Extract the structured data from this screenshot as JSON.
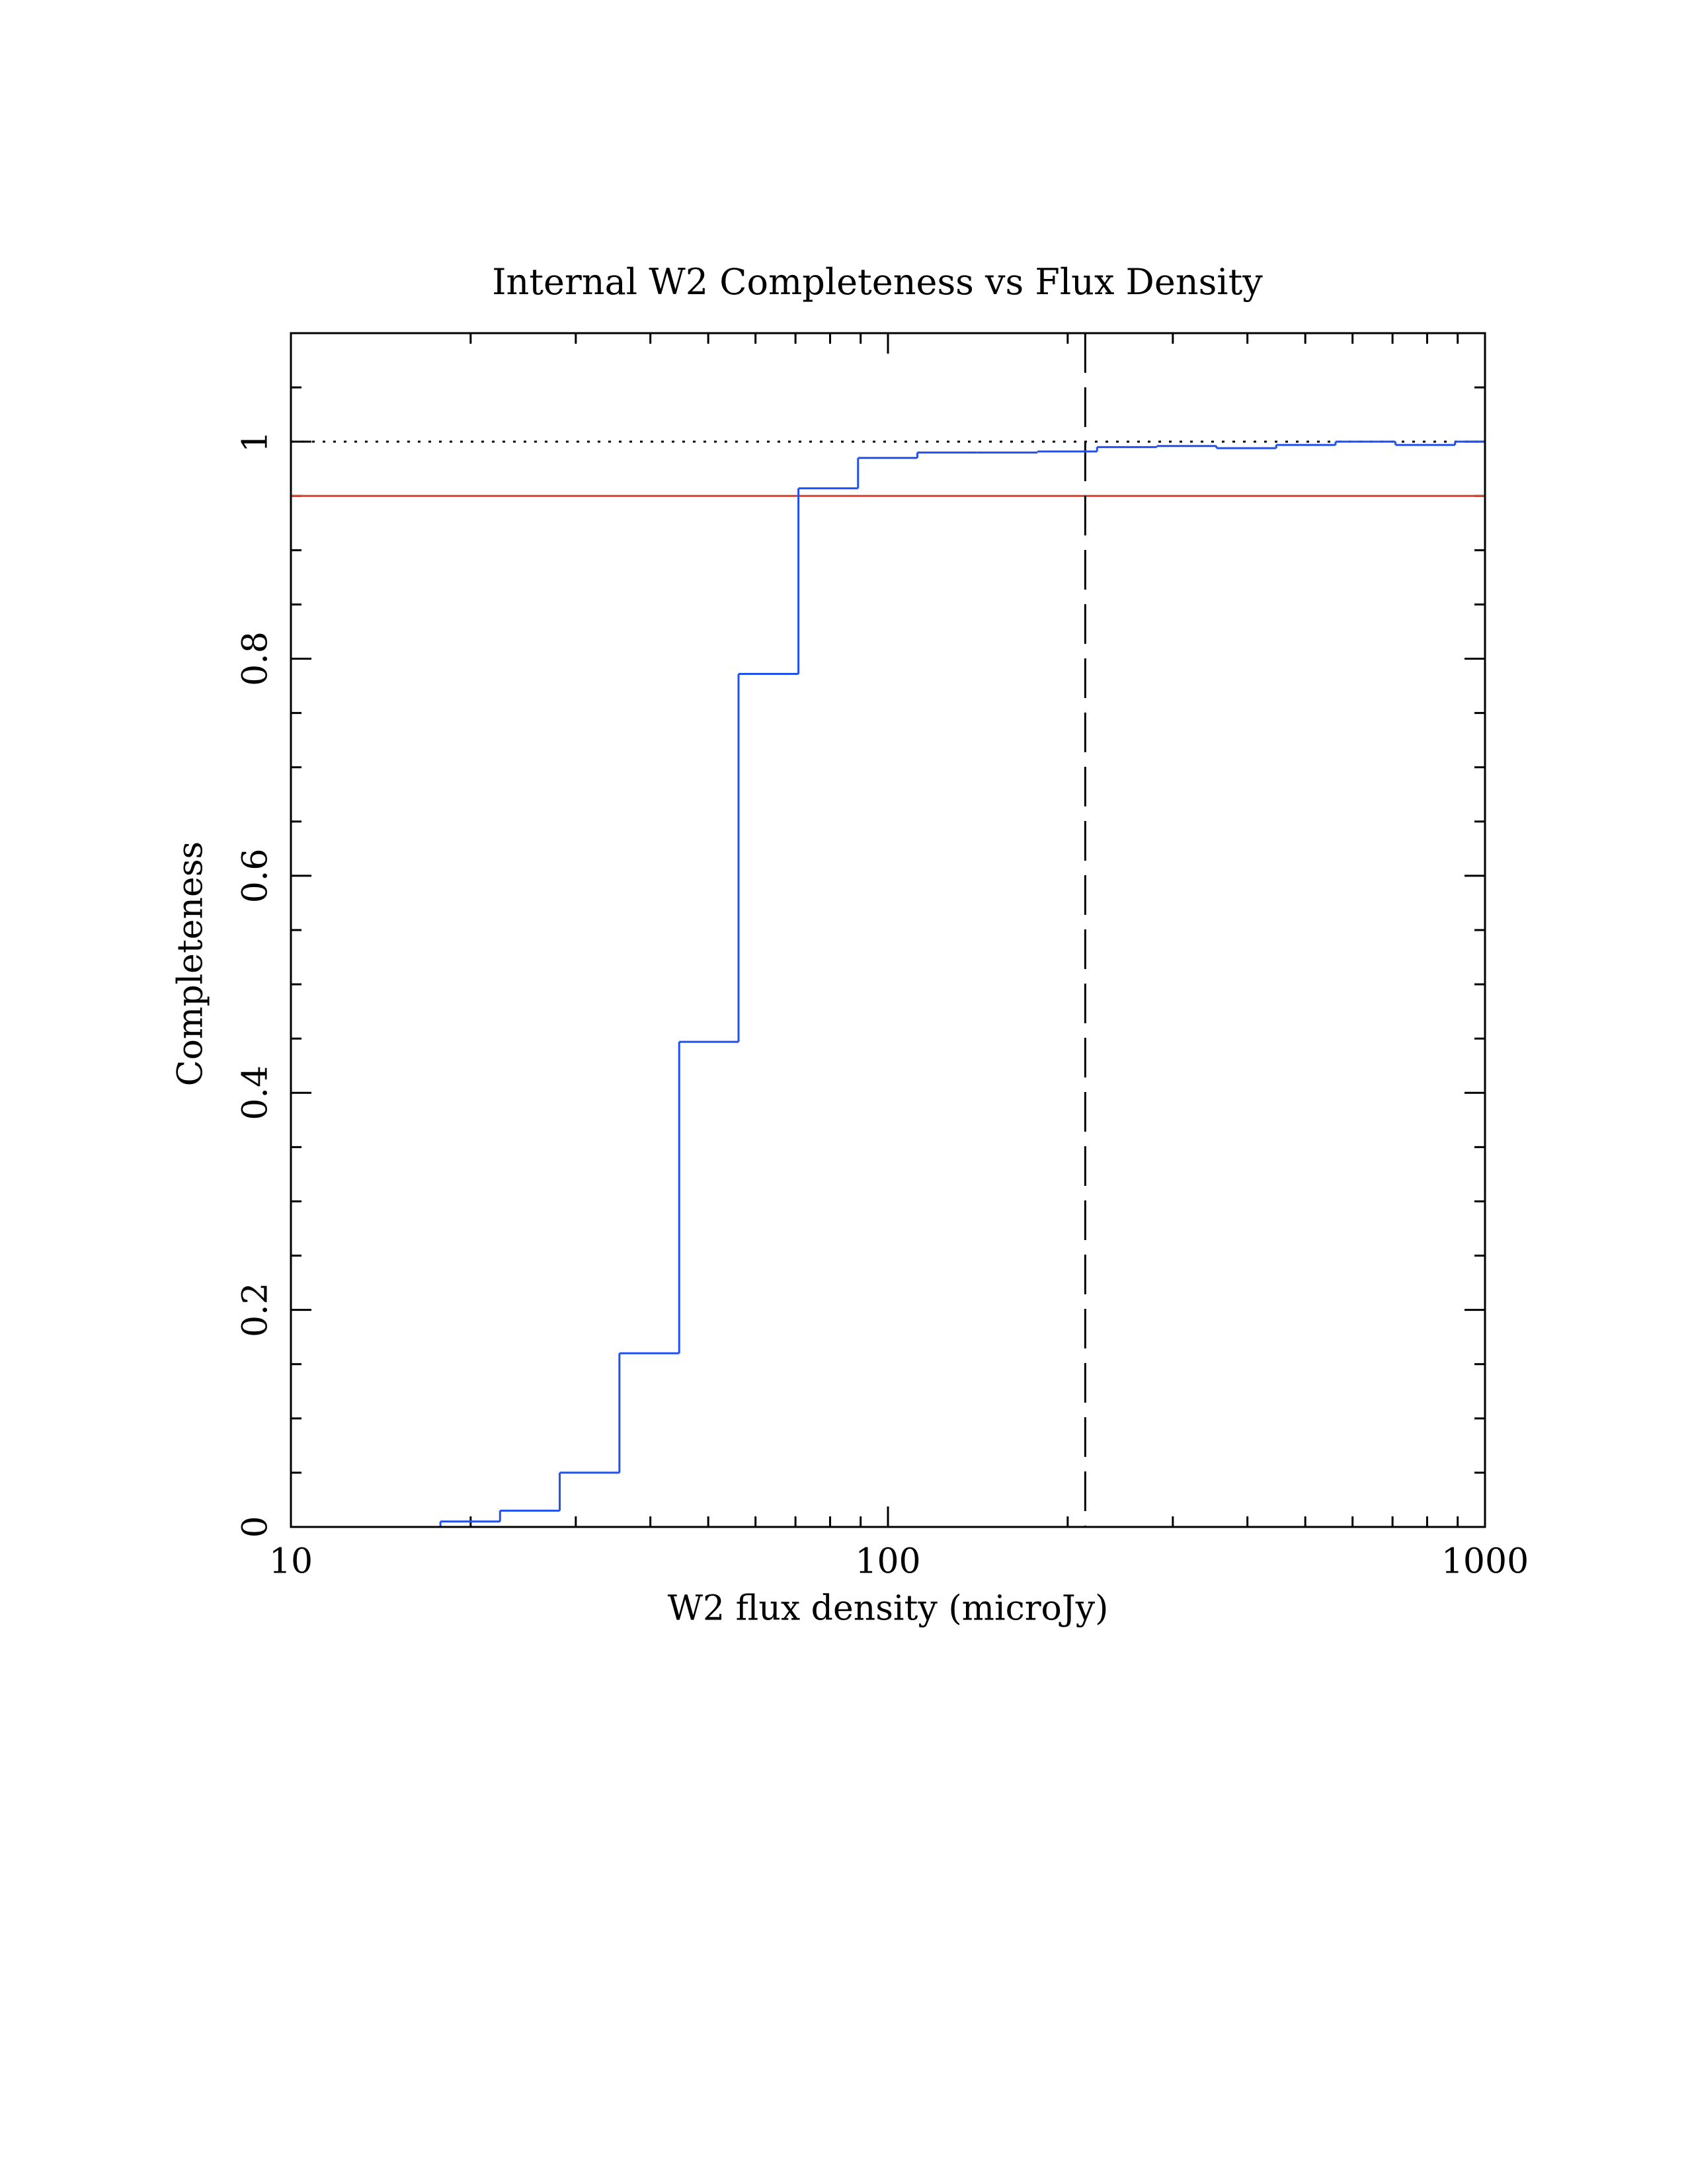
{
  "chart_data": {
    "type": "histogram",
    "title": "Internal W2 Completeness vs Flux Density",
    "x_label": "W2 flux density (microJy)",
    "y_label": "Completeness",
    "x_scale": "log",
    "xlim": [
      10,
      1000
    ],
    "ylim": [
      0,
      1.1
    ],
    "xticks": [
      10,
      100,
      1000
    ],
    "xminor_ticks": [
      20,
      30,
      40,
      50,
      60,
      70,
      80,
      90,
      200,
      300,
      400,
      500,
      600,
      700,
      800,
      900
    ],
    "yticks": [
      0,
      0.2,
      0.4,
      0.6,
      0.8,
      1
    ],
    "yminor_ticks": [
      0.05,
      0.1,
      0.15,
      0.25,
      0.3,
      0.35,
      0.45,
      0.5,
      0.55,
      0.65,
      0.7,
      0.75,
      0.85,
      0.9,
      0.95,
      1.05
    ],
    "color": "#2050ee",
    "bins": [
      10,
      17.8,
      22.4,
      28.2,
      35.5,
      44.7,
      56.2,
      70.8,
      89.1,
      112,
      141,
      178,
      224,
      282,
      355,
      447,
      562,
      708,
      891,
      1000
    ],
    "values": [
      0,
      0.005,
      0.015,
      0.05,
      0.16,
      0.447,
      0.786,
      0.957,
      0.985,
      0.99,
      0.99,
      0.991,
      0.995,
      0.996,
      0.994,
      0.997,
      1.0,
      0.997,
      1.0
    ],
    "hlines": [
      {
        "value": 1,
        "color": "#000000",
        "style": "dotted"
      },
      {
        "value": 0.95,
        "color": "#e0402a",
        "style": "solid"
      }
    ],
    "vlines": [
      {
        "value": 214,
        "color": "#000000",
        "style": "dashed"
      }
    ]
  }
}
